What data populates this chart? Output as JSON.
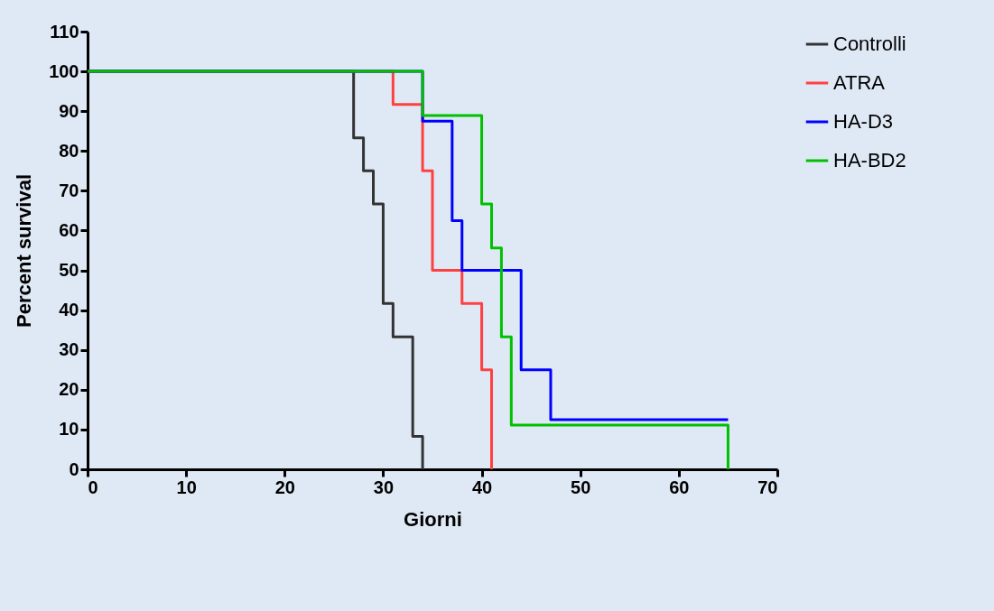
{
  "chart_data": {
    "type": "step",
    "xlabel": "Giorni",
    "ylabel": "Percent survival",
    "xlim": [
      0,
      70
    ],
    "xticks": [
      0,
      10,
      20,
      30,
      40,
      50,
      60,
      70
    ],
    "ylim": [
      0,
      110
    ],
    "yticks": [
      0,
      10,
      20,
      30,
      40,
      50,
      60,
      70,
      80,
      90,
      100,
      110
    ],
    "legend": "right",
    "series": [
      {
        "name": "Controlli",
        "color": "#333333",
        "x": [
          0,
          27,
          28,
          29,
          30,
          31,
          33,
          34
        ],
        "values": [
          100,
          83.3,
          75,
          66.7,
          41.7,
          33.3,
          8.3,
          0
        ]
      },
      {
        "name": "ATRA",
        "color": "#ff4040",
        "x": [
          0,
          31,
          34,
          35,
          38,
          40,
          41
        ],
        "values": [
          100,
          91.7,
          75,
          50,
          41.7,
          25,
          0
        ]
      },
      {
        "name": "HA-D3",
        "color": "#0000ff",
        "x": [
          0,
          34,
          37,
          38,
          44,
          47,
          65
        ],
        "values": [
          100,
          87.5,
          62.5,
          50,
          25,
          12.5,
          12.5
        ]
      },
      {
        "name": "HA-BD2",
        "color": "#00c000",
        "x": [
          0,
          34,
          40,
          41,
          42,
          43,
          65
        ],
        "values": [
          100,
          88.9,
          66.7,
          55.6,
          33.3,
          11.1,
          0
        ]
      }
    ]
  }
}
